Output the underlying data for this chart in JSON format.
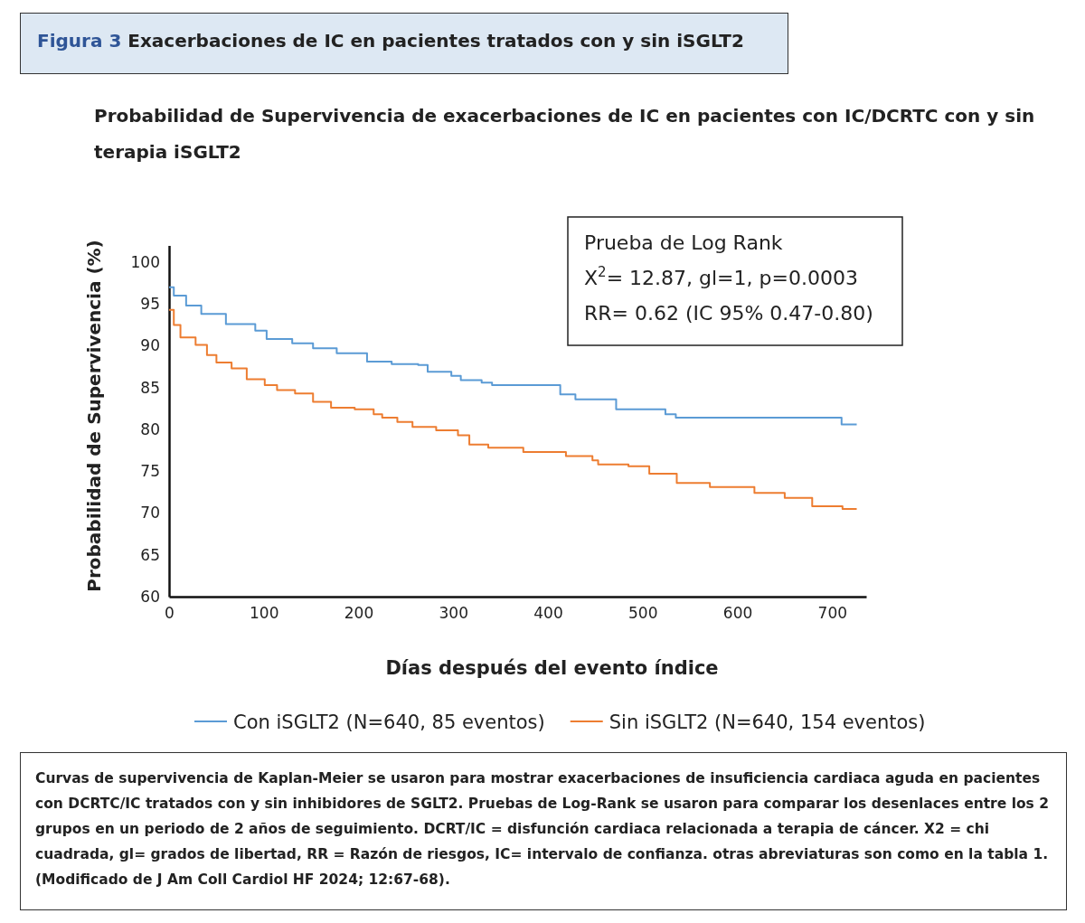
{
  "chart_data": {
    "type": "step",
    "title": "Figura 3 Exacerbaciones de IC en pacientes tratados con y sin iSGLT2",
    "subtitle": "Probabilidad de Supervivencia de exacerbaciones de IC en pacientes con IC/DCRTC con y sin terapia iSGLT2",
    "xlabel": "Días después del evento índice",
    "ylabel": "Probabilidad de Supervivencia  (%)",
    "xlim": [
      0,
      736
    ],
    "xticks": [
      0,
      100,
      200,
      300,
      400,
      500,
      600,
      700
    ],
    "ylim": [
      60,
      102
    ],
    "yticks": [
      60,
      65,
      70,
      75,
      80,
      85,
      90,
      95,
      100
    ],
    "grid": false,
    "legend": "bottom",
    "series": [
      {
        "name": "Con iSGLT2 (N=640, 85 eventos)",
        "color": "#5b9bd5",
        "x": [
          0,
          5,
          18,
          34,
          60,
          91,
          103,
          130,
          152,
          177,
          209,
          235,
          263,
          273,
          298,
          308,
          330,
          341,
          405,
          413,
          429,
          472,
          524,
          535,
          693,
          710,
          726
        ],
        "values": [
          97,
          96,
          94.8,
          93.8,
          92.6,
          91.8,
          90.8,
          90.3,
          89.7,
          89.1,
          88.1,
          87.8,
          87.7,
          86.9,
          86.4,
          85.9,
          85.6,
          85.3,
          85.3,
          84.2,
          83.6,
          82.4,
          81.8,
          81.4,
          81.4,
          80.6,
          80.6
        ]
      },
      {
        "name": "Sin iSGLT2 (N=640, 154 eventos)",
        "color": "#ed7d31",
        "x": [
          0,
          5,
          12,
          28,
          40,
          50,
          66,
          82,
          101,
          114,
          133,
          152,
          171,
          196,
          216,
          225,
          241,
          257,
          282,
          305,
          317,
          337,
          374,
          419,
          447,
          453,
          485,
          507,
          536,
          571,
          618,
          650,
          679,
          711,
          726
        ],
        "values": [
          94.3,
          92.5,
          91,
          90.1,
          88.9,
          88,
          87.3,
          86,
          85.3,
          84.7,
          84.3,
          83.3,
          82.6,
          82.4,
          81.8,
          81.4,
          80.9,
          80.3,
          79.9,
          79.3,
          78.2,
          77.8,
          77.3,
          76.8,
          76.3,
          75.8,
          75.6,
          74.7,
          73.6,
          73.1,
          72.4,
          71.8,
          70.8,
          70.5,
          70.5
        ]
      }
    ],
    "annotations": [
      "Prueba de Log Rank",
      "X$^{2}$= 12.87, gl=1, p=0.0003",
      "RR= 0.62 (IC 95% 0.47-0.80)",
      "Curvas de supervivencia de Kaplan-Meier se usaron para mostrar exacerbaciones de insuficiencia cardiaca aguda en pacientes con DCRTC/IC tratados con y sin inhibidores de SGLT2. Pruebas de Log-Rank se usaron para comparar los desenlaces entre los 2 grupos en un periodo de 2 años de seguimiento.  DCRT/IC = disfunción cardiaca relacionada a terapia de cáncer. X2 = chi cuadrada, gl= grados de libertad, RR = Razón de riesgos, IC= intervalo de confianza.  otras abreviaturas son como en la tabla 1. (Modificado de J Am Coll Cardiol HF 2024; 12:67-68)."
    ]
  }
}
